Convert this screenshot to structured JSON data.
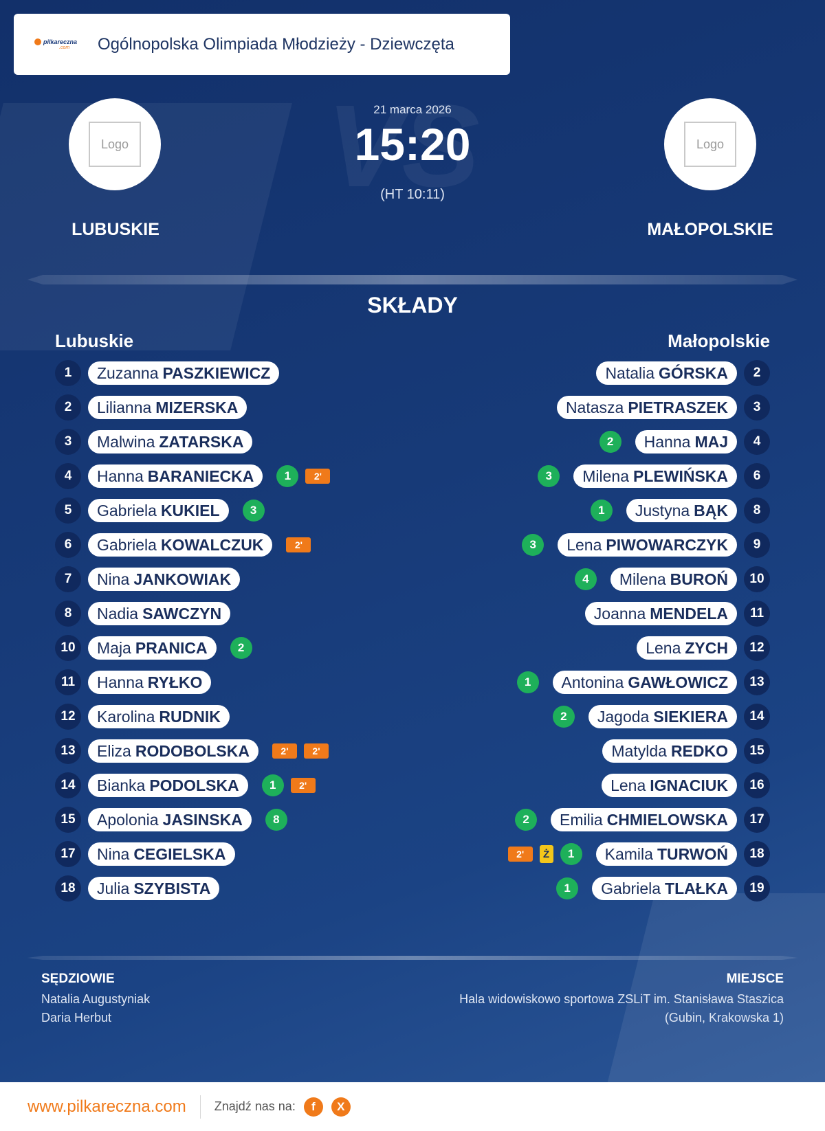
{
  "header": {
    "brand_line1": "pilkareczna",
    "brand_line2": ".com",
    "title": "Ogólnopolska Olimpiada Młodzieży - Dziewczęta"
  },
  "match": {
    "date": "21 marca 2026",
    "score": "15:20",
    "halftime": "(HT 10:11)",
    "vs_bg": "VS",
    "home": {
      "name": "LUBUSKIE",
      "logo_text": "Logo"
    },
    "away": {
      "name": "MAŁOPOLSKIE",
      "logo_text": "Logo"
    }
  },
  "lineups": {
    "title": "SKŁADY",
    "home_label": "Lubuskie",
    "away_label": "Małopolskie",
    "home": [
      {
        "number": "1",
        "first": "Zuzanna",
        "last": "PASZKIEWICZ",
        "goals": null,
        "yellow": null,
        "susp": []
      },
      {
        "number": "2",
        "first": "Lilianna",
        "last": "MIZERSKA",
        "goals": null,
        "yellow": null,
        "susp": []
      },
      {
        "number": "3",
        "first": "Malwina",
        "last": "ZATARSKA",
        "goals": null,
        "yellow": null,
        "susp": []
      },
      {
        "number": "4",
        "first": "Hanna",
        "last": "BARANIECKA",
        "goals": "1",
        "yellow": null,
        "susp": [
          "2'"
        ]
      },
      {
        "number": "5",
        "first": "Gabriela",
        "last": "KUKIEL",
        "goals": "3",
        "yellow": null,
        "susp": []
      },
      {
        "number": "6",
        "first": "Gabriela",
        "last": "KOWALCZUK",
        "goals": null,
        "yellow": null,
        "susp": [
          "2'"
        ]
      },
      {
        "number": "7",
        "first": "Nina",
        "last": "JANKOWIAK",
        "goals": null,
        "yellow": null,
        "susp": []
      },
      {
        "number": "8",
        "first": "Nadia",
        "last": "SAWCZYN",
        "goals": null,
        "yellow": null,
        "susp": []
      },
      {
        "number": "10",
        "first": "Maja",
        "last": "PRANICA",
        "goals": "2",
        "yellow": null,
        "susp": []
      },
      {
        "number": "11",
        "first": "Hanna",
        "last": "RYŁKO",
        "goals": null,
        "yellow": null,
        "susp": []
      },
      {
        "number": "12",
        "first": "Karolina",
        "last": "RUDNIK",
        "goals": null,
        "yellow": null,
        "susp": []
      },
      {
        "number": "13",
        "first": "Eliza",
        "last": "RODOBOLSKA",
        "goals": null,
        "yellow": null,
        "susp": [
          "2'",
          "2'"
        ]
      },
      {
        "number": "14",
        "first": "Bianka",
        "last": "PODOLSKA",
        "goals": "1",
        "yellow": null,
        "susp": [
          "2'"
        ]
      },
      {
        "number": "15",
        "first": "Apolonia",
        "last": "JASINSKA",
        "goals": "8",
        "yellow": null,
        "susp": []
      },
      {
        "number": "17",
        "first": "Nina",
        "last": "CEGIELSKA",
        "goals": null,
        "yellow": null,
        "susp": []
      },
      {
        "number": "18",
        "first": "Julia",
        "last": "SZYBISTA",
        "goals": null,
        "yellow": null,
        "susp": []
      }
    ],
    "away": [
      {
        "number": "2",
        "first": "Natalia",
        "last": "GÓRSKA",
        "goals": null,
        "yellow": null,
        "susp": []
      },
      {
        "number": "3",
        "first": "Natasza",
        "last": "PIETRASZEK",
        "goals": null,
        "yellow": null,
        "susp": []
      },
      {
        "number": "4",
        "first": "Hanna",
        "last": "MAJ",
        "goals": "2",
        "yellow": null,
        "susp": []
      },
      {
        "number": "6",
        "first": "Milena",
        "last": "PLEWIŃSKA",
        "goals": "3",
        "yellow": null,
        "susp": []
      },
      {
        "number": "8",
        "first": "Justyna",
        "last": "BĄK",
        "goals": "1",
        "yellow": null,
        "susp": []
      },
      {
        "number": "9",
        "first": "Lena",
        "last": "PIWOWARCZYK",
        "goals": "3",
        "yellow": null,
        "susp": []
      },
      {
        "number": "10",
        "first": "Milena",
        "last": "BUROŃ",
        "goals": "4",
        "yellow": null,
        "susp": []
      },
      {
        "number": "11",
        "first": "Joanna",
        "last": "MENDELA",
        "goals": null,
        "yellow": null,
        "susp": []
      },
      {
        "number": "12",
        "first": "Lena",
        "last": "ZYCH",
        "goals": null,
        "yellow": null,
        "susp": []
      },
      {
        "number": "13",
        "first": "Antonina",
        "last": "GAWŁOWICZ",
        "goals": "1",
        "yellow": null,
        "susp": []
      },
      {
        "number": "14",
        "first": "Jagoda",
        "last": "SIEKIERA",
        "goals": "2",
        "yellow": null,
        "susp": []
      },
      {
        "number": "15",
        "first": "Matylda",
        "last": "REDKO",
        "goals": null,
        "yellow": null,
        "susp": []
      },
      {
        "number": "16",
        "first": "Lena",
        "last": "IGNACIUK",
        "goals": null,
        "yellow": null,
        "susp": []
      },
      {
        "number": "17",
        "first": "Emilia",
        "last": "CHMIELOWSKA",
        "goals": "2",
        "yellow": null,
        "susp": []
      },
      {
        "number": "18",
        "first": "Kamila",
        "last": "TURWOŃ",
        "goals": "1",
        "yellow": "Ż",
        "susp": [
          "2'"
        ]
      },
      {
        "number": "19",
        "first": "Gabriela",
        "last": "TLAŁKA",
        "goals": "1",
        "yellow": null,
        "susp": []
      }
    ]
  },
  "officials": {
    "title": "SĘDZIOWIE",
    "names": [
      "Natalia Augustyniak",
      "Daria Herbut"
    ]
  },
  "venue": {
    "title": "MIEJSCE",
    "line1": "Hala widowiskowo sportowa ZSLiT im. Stanisława Staszica",
    "line2": "(Gubin, Krakowska 1)"
  },
  "footer": {
    "url": "www.pilkareczna.com",
    "find_us": "Znajdź nas na:",
    "social": [
      {
        "icon": "facebook-icon",
        "glyph": "f"
      },
      {
        "icon": "x-icon",
        "glyph": "X"
      }
    ]
  },
  "colors": {
    "background": "#15346e",
    "accent": "#f07a1a",
    "goal_badge": "#1eb05a",
    "suspension_badge": "#f07a1a",
    "yellow_card": "#f3c61b",
    "number_circle": "#10295e"
  }
}
